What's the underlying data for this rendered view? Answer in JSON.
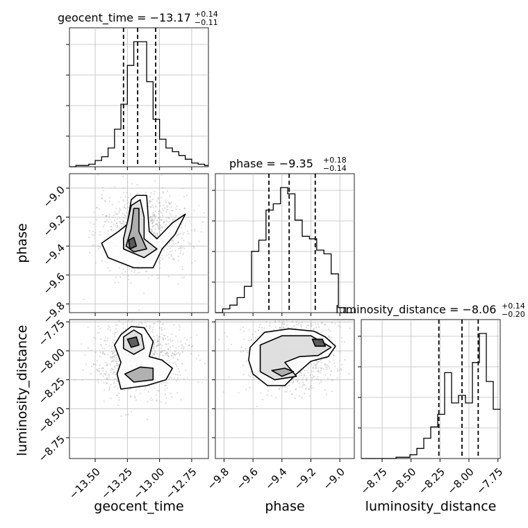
{
  "chart_data": {
    "type": "corner",
    "parameters": [
      "geocent_time",
      "phase",
      "luminosity_distance"
    ],
    "titles": [
      {
        "name": "geocent_time",
        "median": "−13.17",
        "plus": "+0.14",
        "minus": "−0.11"
      },
      {
        "name": "phase",
        "median": "−9.35",
        "plus": "+0.18",
        "minus": "−0.14"
      },
      {
        "name": "luminosity_distance",
        "median": "−8.06",
        "plus": "+0.14",
        "minus": "−0.20"
      }
    ],
    "axis_labels": {
      "x": [
        "geocent_time",
        "phase",
        "luminosity_distance"
      ],
      "y": [
        "phase",
        "luminosity_distance"
      ]
    },
    "ranges": {
      "geocent_time": [
        -13.7,
        -12.62
      ],
      "phase": [
        -9.86,
        -8.9
      ],
      "luminosity_distance": [
        -8.93,
        -7.73
      ]
    },
    "ticks": {
      "geocent_time": {
        "values": [
          -13.5,
          -13.25,
          -13.0,
          -12.75
        ],
        "labels": [
          "−13.50",
          "−13.25",
          "−13.00",
          "−12.75"
        ]
      },
      "phase": {
        "values": [
          -9.8,
          -9.6,
          -9.4,
          -9.2,
          -9.0
        ],
        "labels": [
          "−9.8",
          "−9.6",
          "−9.4",
          "−9.2",
          "−9.0"
        ]
      },
      "luminosity_distance": {
        "values": [
          -8.75,
          -8.5,
          -8.25,
          -8.0,
          -7.75
        ],
        "labels": [
          "−8.75",
          "−8.50",
          "−8.25",
          "−8.00",
          "−7.75"
        ]
      }
    },
    "quantile_lines": {
      "geocent_time": [
        -13.28,
        -13.17,
        -13.03
      ],
      "phase": [
        -9.49,
        -9.35,
        -9.17
      ],
      "luminosity_distance": [
        -8.26,
        -8.06,
        -7.92
      ]
    },
    "histograms": {
      "geocent_time": {
        "edges": [
          -13.7,
          -13.65,
          -13.6,
          -13.55,
          -13.5,
          -13.45,
          -13.4,
          -13.35,
          -13.3,
          -13.25,
          -13.2,
          -13.15,
          -13.1,
          -13.05,
          -13.0,
          -12.95,
          -12.9,
          -12.85,
          -12.8,
          -12.75,
          -12.7,
          -12.65,
          -12.62
        ],
        "counts": [
          0,
          1,
          1,
          2,
          5,
          8,
          15,
          30,
          50,
          81,
          100,
          100,
          68,
          38,
          22,
          15,
          12,
          9,
          6,
          3,
          2,
          1
        ]
      },
      "phase": {
        "edges": [
          -9.86,
          -9.81,
          -9.76,
          -9.71,
          -9.66,
          -9.61,
          -9.56,
          -9.51,
          -9.46,
          -9.41,
          -9.36,
          -9.31,
          -9.26,
          -9.21,
          -9.16,
          -9.11,
          -9.06,
          -9.01,
          -8.96,
          -8.91
        ],
        "counts": [
          0,
          3,
          6,
          12,
          21,
          49,
          58,
          82,
          87,
          100,
          95,
          74,
          61,
          59,
          50,
          47,
          31,
          4,
          0
        ]
      },
      "luminosity_distance": {
        "edges": [
          -8.93,
          -8.87,
          -8.81,
          -8.75,
          -8.69,
          -8.63,
          -8.57,
          -8.51,
          -8.45,
          -8.39,
          -8.33,
          -8.27,
          -8.21,
          -8.15,
          -8.09,
          -8.03,
          -7.97,
          -7.91,
          -7.85,
          -7.79,
          -7.73
        ],
        "counts": [
          0,
          0,
          0,
          0,
          0,
          1,
          1,
          3,
          8,
          16,
          25,
          35,
          68,
          44,
          50,
          44,
          76,
          99,
          61,
          39
        ]
      }
    },
    "contours": {
      "phase_vs_geocent_time": [
        [
          [
            -13.32,
            -9.3
          ],
          [
            -13.25,
            -9.25
          ],
          [
            -13.22,
            -9.08
          ],
          [
            -13.18,
            -9.05
          ],
          [
            -13.1,
            -9.05
          ],
          [
            -13.08,
            -9.3
          ],
          [
            -13.02,
            -9.35
          ],
          [
            -12.9,
            -9.24
          ],
          [
            -12.8,
            -9.18
          ],
          [
            -12.88,
            -9.32
          ],
          [
            -12.98,
            -9.42
          ],
          [
            -13.05,
            -9.55
          ],
          [
            -13.2,
            -9.55
          ],
          [
            -13.4,
            -9.48
          ],
          [
            -13.45,
            -9.38
          ]
        ],
        [
          [
            -13.28,
            -9.35
          ],
          [
            -13.22,
            -9.12
          ],
          [
            -13.15,
            -9.08
          ],
          [
            -13.12,
            -9.2
          ],
          [
            -13.12,
            -9.35
          ],
          [
            -13.02,
            -9.42
          ],
          [
            -13.12,
            -9.48
          ],
          [
            -13.28,
            -9.42
          ]
        ],
        [
          [
            -13.22,
            -9.28
          ],
          [
            -13.2,
            -9.14
          ],
          [
            -13.16,
            -9.14
          ],
          [
            -13.16,
            -9.3
          ],
          [
            -13.1,
            -9.42
          ],
          [
            -13.2,
            -9.44
          ],
          [
            -13.26,
            -9.4
          ]
        ],
        [
          [
            -13.24,
            -9.36
          ],
          [
            -13.2,
            -9.34
          ],
          [
            -13.18,
            -9.4
          ],
          [
            -13.23,
            -9.42
          ]
        ]
      ],
      "luminosity_distance_vs_geocent_time": [
        [
          [
            -13.3,
            -7.86
          ],
          [
            -13.22,
            -7.79
          ],
          [
            -13.12,
            -7.8
          ],
          [
            -13.05,
            -7.92
          ],
          [
            -13.08,
            -8.05
          ],
          [
            -12.98,
            -8.08
          ],
          [
            -12.9,
            -8.15
          ],
          [
            -12.95,
            -8.25
          ],
          [
            -13.1,
            -8.3
          ],
          [
            -13.3,
            -8.33
          ],
          [
            -13.33,
            -8.2
          ],
          [
            -13.3,
            -8.1
          ],
          [
            -13.35,
            -7.95
          ]
        ],
        [
          [
            -13.28,
            -7.88
          ],
          [
            -13.2,
            -7.82
          ],
          [
            -13.14,
            -7.86
          ],
          [
            -13.12,
            -7.98
          ],
          [
            -13.2,
            -8.03
          ],
          [
            -13.28,
            -7.98
          ]
        ],
        [
          [
            -13.27,
            -8.2
          ],
          [
            -13.15,
            -8.14
          ],
          [
            -13.05,
            -8.15
          ],
          [
            -13.05,
            -8.25
          ],
          [
            -13.2,
            -8.27
          ]
        ],
        [
          [
            -13.25,
            -7.9
          ],
          [
            -13.18,
            -7.88
          ],
          [
            -13.16,
            -7.95
          ],
          [
            -13.22,
            -7.97
          ]
        ]
      ],
      "luminosity_distance_vs_phase": [
        [
          [
            -9.62,
            -7.97
          ],
          [
            -9.52,
            -7.84
          ],
          [
            -9.35,
            -7.81
          ],
          [
            -9.18,
            -7.83
          ],
          [
            -9.1,
            -7.88
          ],
          [
            -9.03,
            -7.96
          ],
          [
            -9.08,
            -8.05
          ],
          [
            -9.2,
            -8.09
          ],
          [
            -9.3,
            -8.2
          ],
          [
            -9.38,
            -8.3
          ],
          [
            -9.5,
            -8.3
          ],
          [
            -9.6,
            -8.2
          ],
          [
            -9.63,
            -8.08
          ]
        ],
        [
          [
            -9.55,
            -7.95
          ],
          [
            -9.4,
            -7.87
          ],
          [
            -9.2,
            -7.87
          ],
          [
            -9.06,
            -7.97
          ],
          [
            -9.15,
            -8.04
          ],
          [
            -9.28,
            -8.05
          ],
          [
            -9.38,
            -8.1
          ],
          [
            -9.3,
            -8.22
          ],
          [
            -9.45,
            -8.25
          ],
          [
            -9.55,
            -8.18
          ]
        ],
        [
          [
            -9.47,
            -8.17
          ],
          [
            -9.38,
            -8.15
          ],
          [
            -9.32,
            -8.18
          ],
          [
            -9.4,
            -8.22
          ]
        ],
        [
          [
            -9.19,
            -7.9
          ],
          [
            -9.12,
            -7.9
          ],
          [
            -9.1,
            -7.96
          ],
          [
            -9.17,
            -7.96
          ]
        ]
      ]
    }
  }
}
